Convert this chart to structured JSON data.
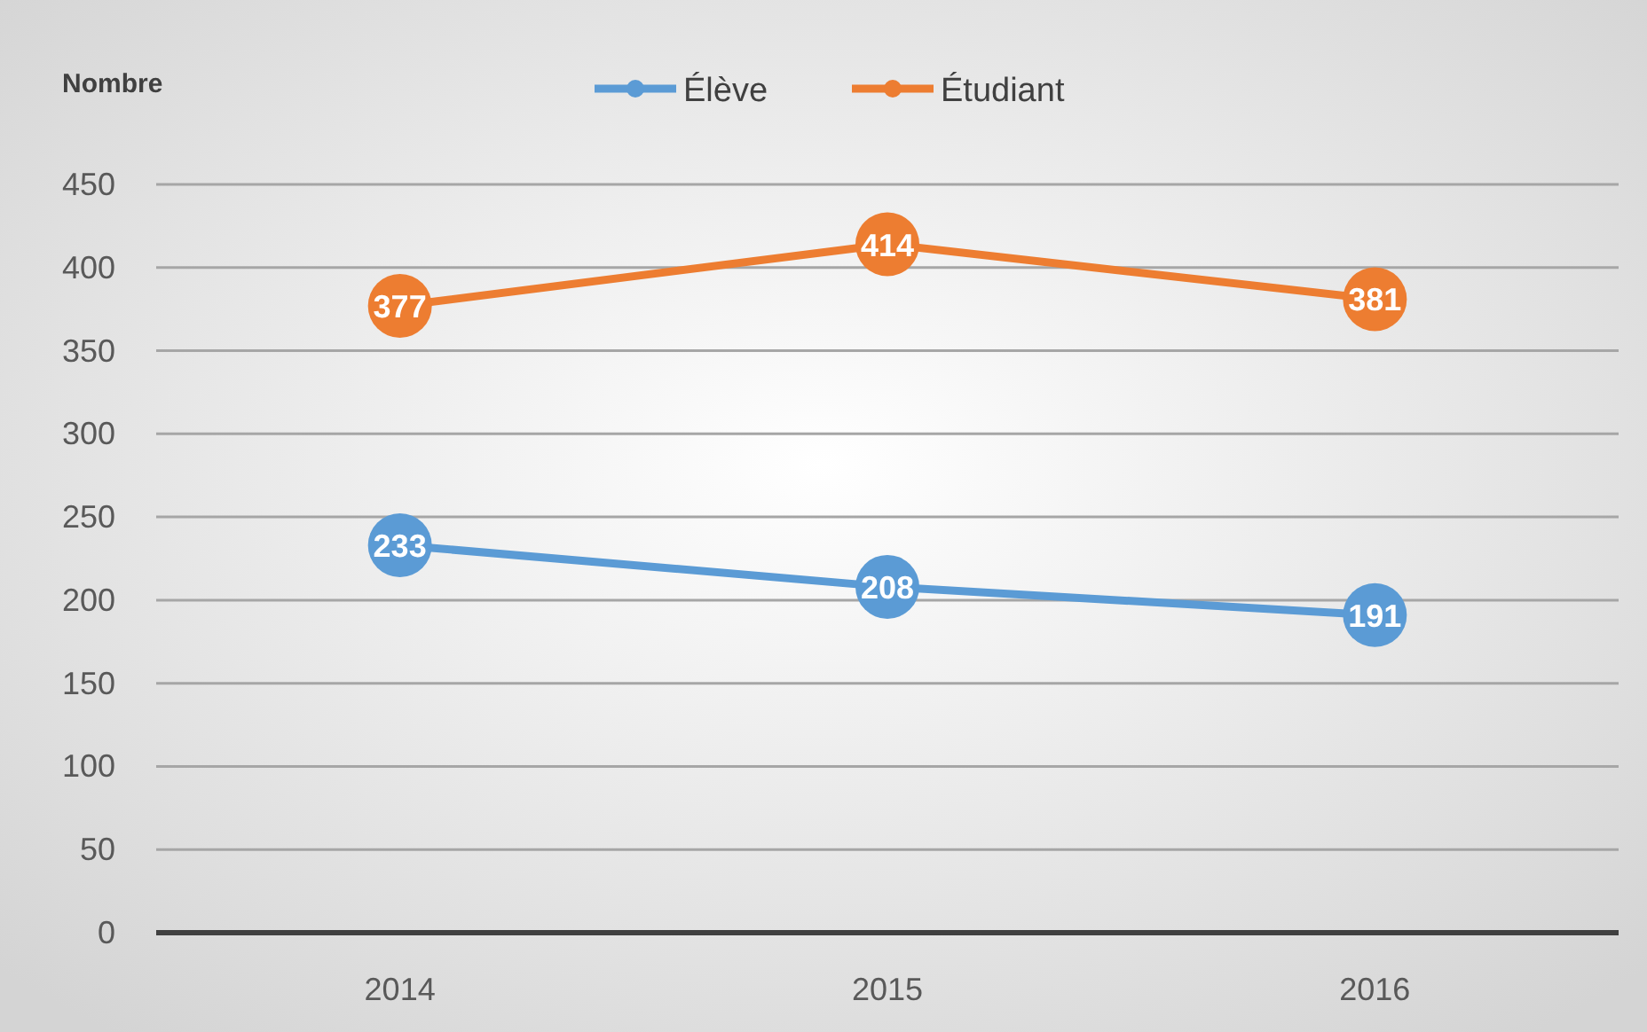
{
  "chart_data": {
    "type": "line",
    "ylabel": "Nombre",
    "categories": [
      "2014",
      "2015",
      "2016"
    ],
    "series": [
      {
        "name": "Élève",
        "color": "#5b9bd5",
        "values": [
          233,
          208,
          191
        ]
      },
      {
        "name": "Étudiant",
        "color": "#ed7d31",
        "values": [
          377,
          414,
          381
        ]
      }
    ],
    "ylim": [
      0,
      450
    ],
    "yticks": [
      0,
      50,
      100,
      150,
      200,
      250,
      300,
      350,
      400,
      450
    ],
    "grid": "y",
    "legend": "top",
    "marker": "circle",
    "data_labels": true
  }
}
